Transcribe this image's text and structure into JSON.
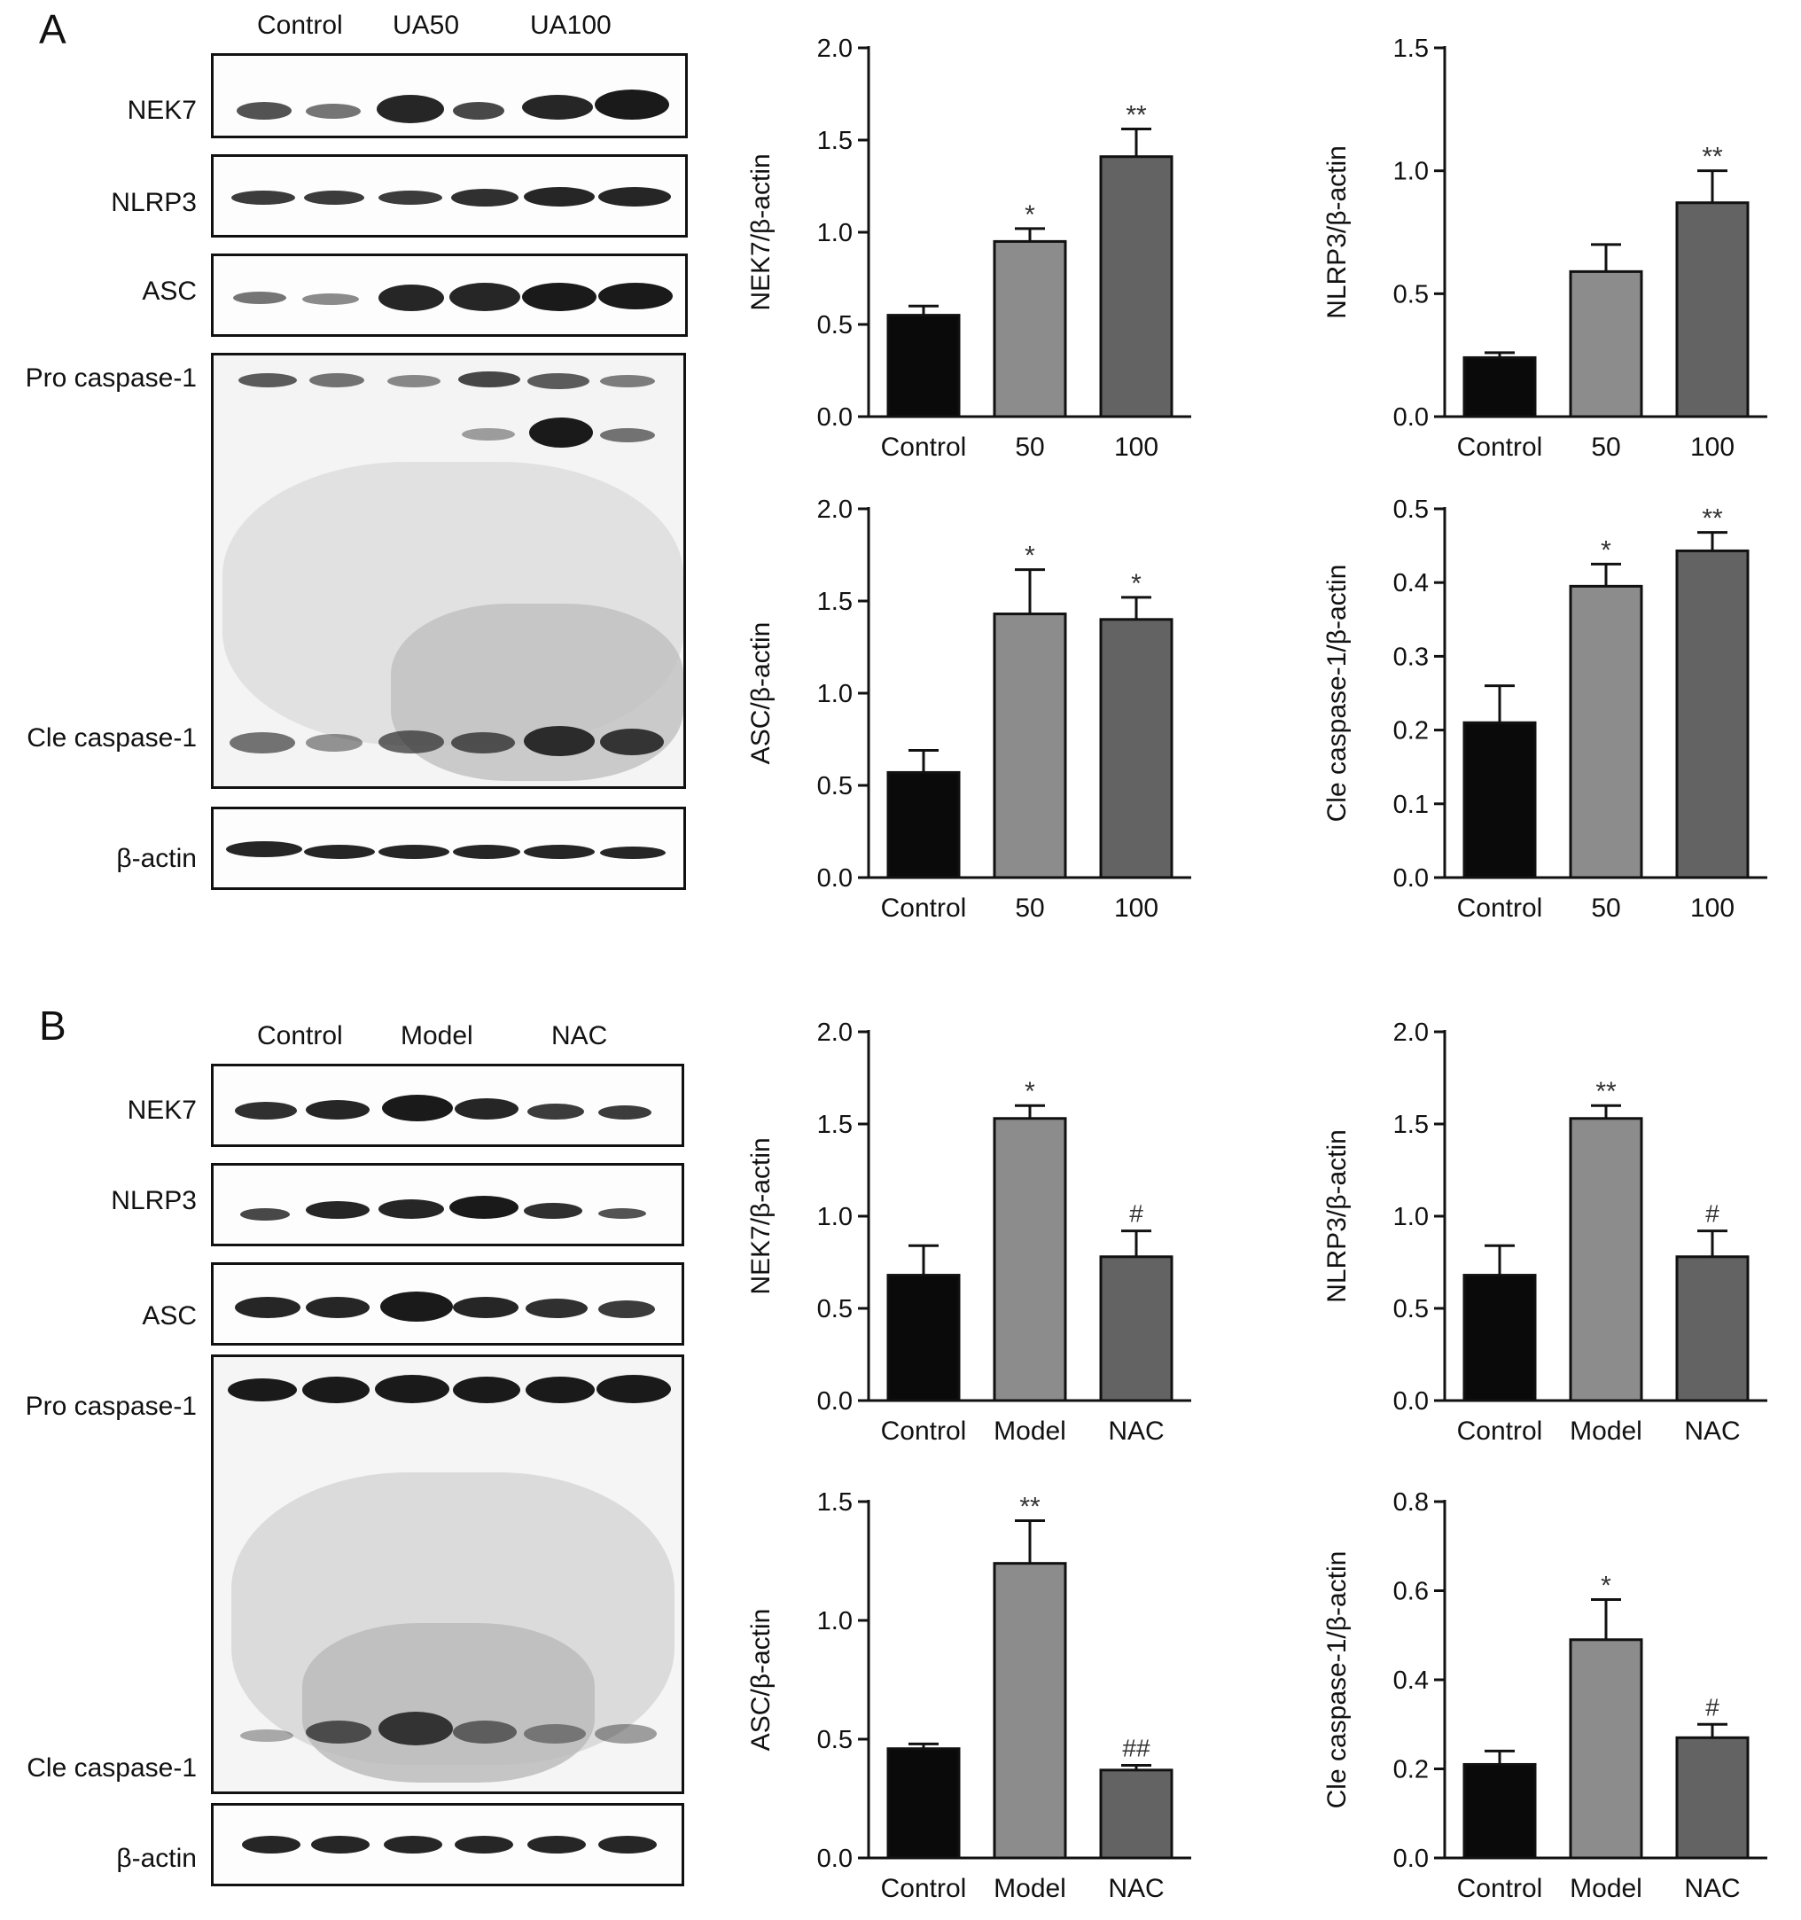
{
  "panels": [
    {
      "letter": "A",
      "lanes": [
        "Control",
        "UA50",
        "UA100"
      ],
      "blots": [
        "NEK7",
        "NLRP3",
        "ASC",
        "Pro caspase-1",
        "Cle caspase-1",
        "β-actin"
      ]
    },
    {
      "letter": "B",
      "lanes": [
        "Control",
        "Model",
        "NAC"
      ],
      "blots": [
        "NEK7",
        "NLRP3",
        "ASC",
        "Pro caspase-1",
        "Cle caspase-1",
        "β-actin"
      ]
    }
  ],
  "chart_data": [
    {
      "type": "bar",
      "panel": "A",
      "categories": [
        "Control",
        "50",
        "100"
      ],
      "values": [
        0.55,
        0.95,
        1.41
      ],
      "errors": [
        0.05,
        0.07,
        0.15
      ],
      "annotations": [
        "",
        "*",
        "**"
      ],
      "ylabel": "NEK7/β-actin",
      "ylim": [
        0,
        2.0
      ],
      "yticks": [
        "0.0",
        "0.5",
        "1.0",
        "1.5",
        "2.0"
      ],
      "colors": [
        "#0a0a0a",
        "#8c8c8c",
        "#636363"
      ]
    },
    {
      "type": "bar",
      "panel": "A",
      "categories": [
        "Control",
        "50",
        "100"
      ],
      "values": [
        0.24,
        0.59,
        0.87
      ],
      "errors": [
        0.02,
        0.11,
        0.13
      ],
      "annotations": [
        "",
        "",
        "**"
      ],
      "ylabel": "NLRP3/β-actin",
      "ylim": [
        0,
        1.5
      ],
      "yticks": [
        "0.0",
        "0.5",
        "1.0",
        "1.5"
      ],
      "colors": [
        "#0a0a0a",
        "#8c8c8c",
        "#636363"
      ]
    },
    {
      "type": "bar",
      "panel": "A",
      "categories": [
        "Control",
        "50",
        "100"
      ],
      "values": [
        0.57,
        1.43,
        1.4
      ],
      "errors": [
        0.12,
        0.24,
        0.12
      ],
      "annotations": [
        "",
        "*",
        "*"
      ],
      "ylabel": "ASC/β-actin",
      "ylim": [
        0,
        2.0
      ],
      "yticks": [
        "0.0",
        "0.5",
        "1.0",
        "1.5",
        "2.0"
      ],
      "colors": [
        "#0a0a0a",
        "#8c8c8c",
        "#636363"
      ]
    },
    {
      "type": "bar",
      "panel": "A",
      "categories": [
        "Control",
        "50",
        "100"
      ],
      "values": [
        0.21,
        0.395,
        0.443
      ],
      "errors": [
        0.05,
        0.03,
        0.025
      ],
      "annotations": [
        "",
        "*",
        "**"
      ],
      "ylabel": "Cle caspase-1/β-actin",
      "ylim": [
        0,
        0.5
      ],
      "yticks": [
        "0.0",
        "0.1",
        "0.2",
        "0.3",
        "0.4",
        "0.5"
      ],
      "colors": [
        "#0a0a0a",
        "#8c8c8c",
        "#636363"
      ]
    },
    {
      "type": "bar",
      "panel": "B",
      "categories": [
        "Control",
        "Model",
        "NAC"
      ],
      "values": [
        0.68,
        1.53,
        0.78
      ],
      "errors": [
        0.16,
        0.07,
        0.14
      ],
      "annotations": [
        "",
        "*",
        "#"
      ],
      "ylabel": "NEK7/β-actin",
      "ylim": [
        0,
        2.0
      ],
      "yticks": [
        "0.0",
        "0.5",
        "1.0",
        "1.5",
        "2.0"
      ],
      "colors": [
        "#0a0a0a",
        "#8c8c8c",
        "#636363"
      ]
    },
    {
      "type": "bar",
      "panel": "B",
      "categories": [
        "Control",
        "Model",
        "NAC"
      ],
      "values": [
        0.68,
        1.53,
        0.78
      ],
      "errors": [
        0.16,
        0.07,
        0.14
      ],
      "annotations": [
        "",
        "**",
        "#"
      ],
      "ylabel": "NLRP3/β-actin",
      "ylim": [
        0,
        2.0
      ],
      "yticks": [
        "0.0",
        "0.5",
        "1.0",
        "1.5",
        "2.0"
      ],
      "colors": [
        "#0a0a0a",
        "#8c8c8c",
        "#636363"
      ]
    },
    {
      "type": "bar",
      "panel": "B",
      "categories": [
        "Control",
        "Model",
        "NAC"
      ],
      "values": [
        0.46,
        1.24,
        0.37
      ],
      "errors": [
        0.02,
        0.18,
        0.02
      ],
      "annotations": [
        "",
        "**",
        "##"
      ],
      "ylabel": "ASC/β-actin",
      "ylim": [
        0,
        1.5
      ],
      "yticks": [
        "0.0",
        "0.5",
        "1.0",
        "1.5"
      ],
      "colors": [
        "#0a0a0a",
        "#8c8c8c",
        "#636363"
      ]
    },
    {
      "type": "bar",
      "panel": "B",
      "categories": [
        "Control",
        "Model",
        "NAC"
      ],
      "values": [
        0.21,
        0.49,
        0.27
      ],
      "errors": [
        0.03,
        0.09,
        0.03
      ],
      "annotations": [
        "",
        "*",
        "#"
      ],
      "ylabel": "Cle caspase-1/β-actin",
      "ylim": [
        0,
        0.8
      ],
      "yticks": [
        "0.0",
        "0.2",
        "0.4",
        "0.6",
        "0.8"
      ],
      "colors": [
        "#0a0a0a",
        "#8c8c8c",
        "#636363"
      ]
    }
  ]
}
